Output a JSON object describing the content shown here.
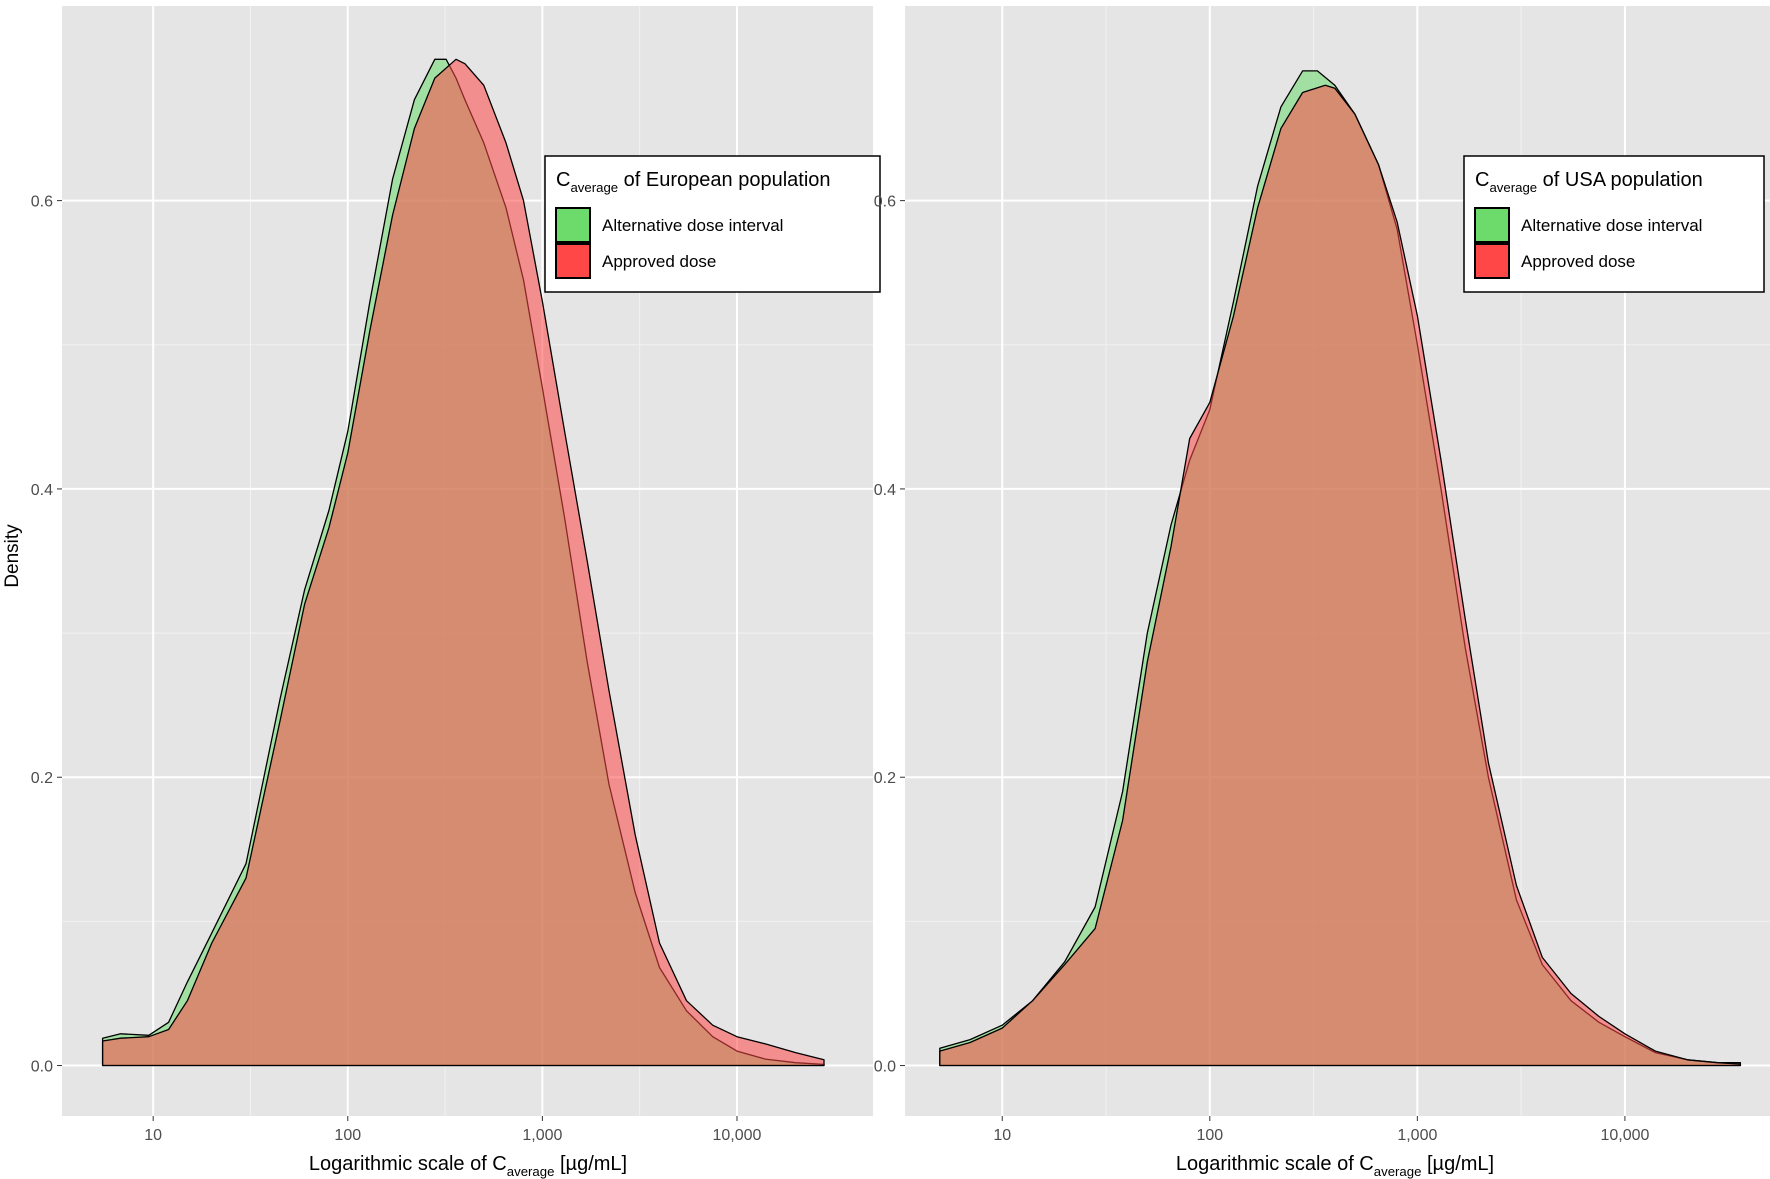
{
  "figure": {
    "y_axis_label": "Density"
  },
  "chart_data": [
    {
      "type": "area",
      "title": "",
      "xlabel": {
        "prefix": "Logarithmic scale of C",
        "subscript": "average",
        "suffix": " [µg/mL]"
      },
      "ylabel": "Density",
      "x_scale": "log10",
      "xlim": [
        3.4,
        50000
      ],
      "ylim": [
        -0.035,
        0.735
      ],
      "x_ticks": [
        10,
        100,
        1000,
        10000
      ],
      "x_tick_labels": [
        "10",
        "100",
        "1,000",
        "10,000"
      ],
      "y_ticks": [
        0.0,
        0.2,
        0.4,
        0.6
      ],
      "y_tick_labels": [
        "0.0",
        "0.2",
        "0.4",
        "0.6"
      ],
      "grid": true,
      "legend": {
        "placement": "top-right",
        "title": {
          "prefix": "C",
          "subscript": "average",
          "suffix": " of European population"
        },
        "entries": [
          "Alternative dose interval",
          "Approved dose"
        ]
      },
      "series": [
        {
          "name": "Alternative dose interval",
          "color": "#6cdb6c",
          "x": [
            5.5,
            6.8,
            9.5,
            12,
            15,
            20,
            30,
            45,
            60,
            80,
            100,
            130,
            170,
            220,
            280,
            320,
            360,
            400,
            500,
            650,
            800,
            1000,
            1300,
            1700,
            2200,
            3000,
            4000,
            5500,
            7500,
            10000,
            14000,
            20000,
            28000
          ],
          "y": [
            0.019,
            0.022,
            0.021,
            0.03,
            0.058,
            0.092,
            0.14,
            0.255,
            0.33,
            0.385,
            0.44,
            0.53,
            0.615,
            0.67,
            0.698,
            0.698,
            0.685,
            0.67,
            0.64,
            0.595,
            0.545,
            0.47,
            0.38,
            0.28,
            0.195,
            0.12,
            0.068,
            0.038,
            0.02,
            0.01,
            0.0045,
            0.002,
            0.0008
          ]
        },
        {
          "name": "Approved dose",
          "color": "#ff4747",
          "x": [
            5.5,
            6.8,
            9.5,
            12,
            15,
            20,
            30,
            45,
            60,
            80,
            100,
            130,
            170,
            220,
            280,
            360,
            400,
            500,
            650,
            800,
            1000,
            1300,
            1700,
            2200,
            3000,
            4000,
            5500,
            7500,
            10000,
            14000,
            20000,
            28000
          ],
          "y": [
            0.017,
            0.019,
            0.02,
            0.025,
            0.045,
            0.085,
            0.13,
            0.24,
            0.32,
            0.373,
            0.425,
            0.51,
            0.59,
            0.65,
            0.685,
            0.698,
            0.695,
            0.68,
            0.64,
            0.6,
            0.53,
            0.44,
            0.35,
            0.26,
            0.16,
            0.085,
            0.045,
            0.028,
            0.02,
            0.015,
            0.009,
            0.004
          ]
        }
      ]
    },
    {
      "type": "area",
      "title": "",
      "xlabel": {
        "prefix": "Logarithmic scale of C",
        "subscript": "average",
        "suffix": " [µg/mL]"
      },
      "ylabel": "",
      "x_scale": "log10",
      "xlim": [
        3.4,
        50000
      ],
      "ylim": [
        -0.035,
        0.735
      ],
      "x_ticks": [
        10,
        100,
        1000,
        10000
      ],
      "x_tick_labels": [
        "10",
        "100",
        "1,000",
        "10,000"
      ],
      "y_ticks": [
        0.0,
        0.2,
        0.4,
        0.6
      ],
      "y_tick_labels": [
        "0.0",
        "0.2",
        "0.4",
        "0.6"
      ],
      "grid": true,
      "legend": {
        "placement": "top-right",
        "title": {
          "prefix": "C",
          "subscript": "average",
          "suffix": " of USA population"
        },
        "entries": [
          "Alternative dose interval",
          "Approved dose"
        ]
      },
      "series": [
        {
          "name": "Alternative dose interval",
          "color": "#6cdb6c",
          "x": [
            5,
            7,
            10,
            14,
            20,
            28,
            38,
            50,
            65,
            80,
            100,
            130,
            170,
            220,
            280,
            330,
            400,
            500,
            650,
            800,
            1000,
            1300,
            1700,
            2200,
            3000,
            4000,
            5500,
            7500,
            10000,
            14000,
            20000,
            28000,
            36000
          ],
          "y": [
            0.012,
            0.018,
            0.028,
            0.045,
            0.072,
            0.11,
            0.19,
            0.3,
            0.375,
            0.42,
            0.455,
            0.53,
            0.61,
            0.665,
            0.69,
            0.69,
            0.68,
            0.66,
            0.625,
            0.58,
            0.5,
            0.4,
            0.29,
            0.2,
            0.115,
            0.07,
            0.045,
            0.03,
            0.02,
            0.009,
            0.004,
            0.002,
            0.002
          ]
        },
        {
          "name": "Approved dose",
          "color": "#ff4747",
          "x": [
            5,
            7,
            10,
            14,
            20,
            28,
            38,
            50,
            65,
            80,
            100,
            130,
            170,
            220,
            280,
            360,
            400,
            500,
            650,
            800,
            1000,
            1300,
            1700,
            2200,
            3000,
            4000,
            5500,
            7500,
            10000,
            14000,
            20000,
            28000,
            36000
          ],
          "y": [
            0.01,
            0.016,
            0.026,
            0.045,
            0.07,
            0.095,
            0.17,
            0.28,
            0.36,
            0.435,
            0.46,
            0.52,
            0.595,
            0.65,
            0.675,
            0.68,
            0.678,
            0.66,
            0.625,
            0.585,
            0.52,
            0.42,
            0.31,
            0.21,
            0.125,
            0.075,
            0.05,
            0.034,
            0.022,
            0.01,
            0.004,
            0.002,
            0.001
          ]
        }
      ]
    }
  ]
}
